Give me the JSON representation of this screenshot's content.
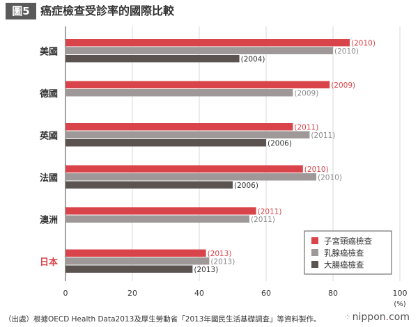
{
  "header": {
    "fig_label": "圖5",
    "title": "癌症檢查受診率的國際比較"
  },
  "footer": {
    "source": "（出處）根據OECD Health Data2013及厚生勞動省「2013年國民生活基礎調査」等資料製作。",
    "brand_name": "nippon",
    "brand_dot": ".",
    "brand_tld": "com",
    "brand_icon": "dotted-diamond-icon"
  },
  "chart_data": {
    "type": "bar",
    "orientation": "horizontal",
    "categories": [
      "美國",
      "德國",
      "英國",
      "法國",
      "澳洲",
      "日本"
    ],
    "highlight_category": "日本",
    "series": [
      {
        "name": "子宮頸癌檢查",
        "color": "#d9444a",
        "label_color": "#d9444a",
        "values": [
          85,
          79,
          68,
          71,
          57,
          42
        ],
        "years": [
          "(2010)",
          "(2009)",
          "(2011)",
          "(2010)",
          "(2011)",
          "(2013)"
        ]
      },
      {
        "name": "乳腺癌檢查",
        "color": "#9f9898",
        "label_color": "#8a8a8a",
        "values": [
          80,
          68,
          73,
          75,
          55,
          43
        ],
        "years": [
          "(2010)",
          "(2009)",
          "(2011)",
          "(2010)",
          "(2011)",
          "(2013)"
        ]
      },
      {
        "name": "大腸癌檢查",
        "color": "#5a5350",
        "label_color": "#333333",
        "values": [
          52,
          null,
          60,
          50,
          null,
          38
        ],
        "years": [
          "(2004)",
          null,
          "(2006)",
          "(2006)",
          null,
          "(2013)"
        ]
      }
    ],
    "xlim": [
      0,
      100
    ],
    "xticks": [
      0,
      20,
      40,
      60,
      80,
      100
    ],
    "x_unit": "(%)",
    "grid": true,
    "legend_position": "bottom-right",
    "highlight_color": "#d9444a"
  }
}
